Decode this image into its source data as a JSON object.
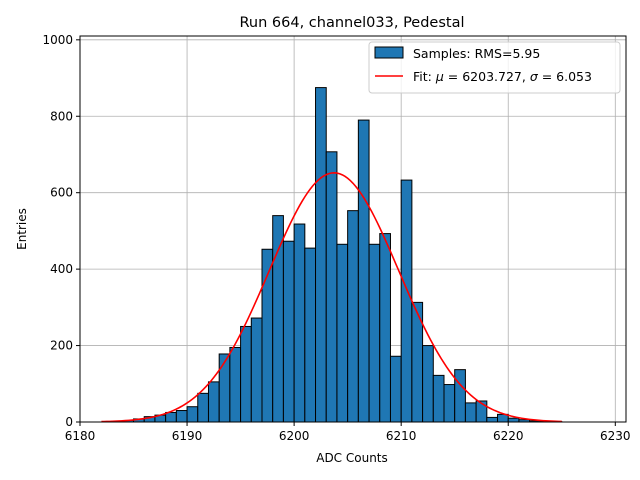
{
  "chart_data": {
    "type": "bar",
    "title": "Run 664, channel033, Pedestal",
    "xlabel": "ADC Counts",
    "ylabel": "Entries",
    "xlim": [
      6180,
      6231
    ],
    "ylim": [
      0,
      1010
    ],
    "grid": true,
    "legend_position": "top-right",
    "xticks": [
      6180,
      6190,
      6200,
      6210,
      6220,
      6230
    ],
    "yticks": [
      0,
      200,
      400,
      600,
      800,
      1000
    ],
    "bin_width": 1,
    "bins_start": 6182,
    "counts": [
      0,
      2,
      4,
      8,
      14,
      18,
      25,
      30,
      40,
      75,
      105,
      178,
      195,
      250,
      272,
      452,
      540,
      473,
      518,
      455,
      875,
      707,
      465,
      553,
      790,
      465,
      493,
      172,
      633,
      313,
      200,
      122,
      98,
      137,
      50,
      55,
      12,
      20,
      10,
      6,
      3,
      2,
      1
    ],
    "series": [
      {
        "name": "Samples: RMS=5.95",
        "kind": "histogram",
        "color": "#1f77b4"
      },
      {
        "name": "Fit: μ = 6203.727, σ = 6.053",
        "kind": "gaussian",
        "mu": 6203.727,
        "sigma": 6.053,
        "amplitude": 652,
        "x_range": [
          6182,
          6225
        ],
        "color": "#ff0000"
      }
    ],
    "legend": {
      "samples_label_prefix": "Samples: RMS=5.95",
      "fit_label_prefix": "Fit: ",
      "fit_mu_symbol": "μ",
      "fit_mu_value": " = 6203.727, ",
      "fit_sigma_symbol": "σ",
      "fit_sigma_value": " = 6.053"
    }
  }
}
